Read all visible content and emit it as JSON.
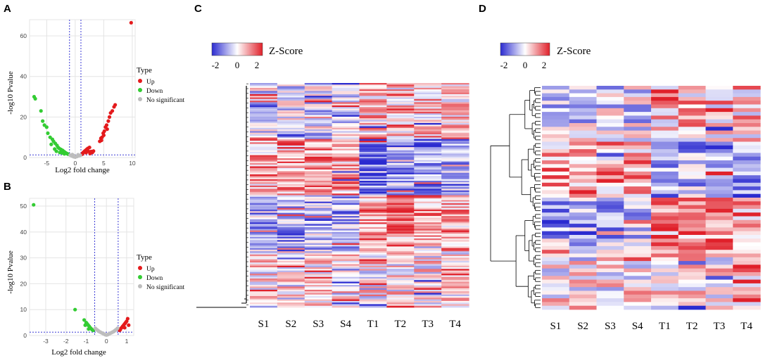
{
  "panels": {
    "A": {
      "label": "A"
    },
    "B": {
      "label": "B"
    },
    "C": {
      "label": "C"
    },
    "D": {
      "label": "D"
    }
  },
  "colors": {
    "up": "#e41a1c",
    "down": "#33cc33",
    "ns": "#bdbdbd",
    "threshold": "#3b3bd6",
    "low": "#2b2bd0",
    "mid": "#ffffff",
    "high": "#e0202a"
  },
  "chart_data": [
    {
      "id": "A",
      "type": "scatter",
      "title": "",
      "xlabel": "Log2 fold change",
      "ylabel": "-log10 Pvalue",
      "xlim": [
        -8,
        10.5
      ],
      "ylim": [
        0,
        68
      ],
      "xticks": [
        -5,
        0,
        5,
        10
      ],
      "yticks": [
        0,
        20,
        40,
        60
      ],
      "grid": true,
      "thresholds": {
        "x": [
          -1,
          1
        ],
        "y": [
          1.3
        ]
      },
      "legend": {
        "title": "Type",
        "position": "right",
        "entries": [
          "Up",
          "Down",
          "No significant"
        ]
      },
      "series": [
        {
          "name": "Up",
          "points": [
            [
              9.8,
              66.5
            ],
            [
              7,
              26
            ],
            [
              6.8,
              25
            ],
            [
              6.5,
              23
            ],
            [
              6.2,
              22
            ],
            [
              6,
              20
            ],
            [
              5.8,
              18
            ],
            [
              5.5,
              16
            ],
            [
              5.3,
              15
            ],
            [
              5.6,
              14
            ],
            [
              5.1,
              13
            ],
            [
              4.9,
              12
            ],
            [
              5,
              11
            ],
            [
              4.7,
              10
            ],
            [
              4.5,
              9.5
            ],
            [
              4.6,
              8.5
            ],
            [
              4.3,
              8
            ],
            [
              2.5,
              5
            ],
            [
              2.2,
              4.5
            ],
            [
              2,
              4
            ],
            [
              1.8,
              3.5
            ],
            [
              1.6,
              3
            ],
            [
              1.4,
              2.5
            ],
            [
              1.3,
              2
            ],
            [
              1.2,
              1.6
            ],
            [
              2.8,
              3
            ],
            [
              3,
              2.5
            ],
            [
              2.6,
              2
            ],
            [
              3.2,
              3.2
            ],
            [
              1.9,
              2.4
            ],
            [
              2.3,
              3.1
            ]
          ]
        },
        {
          "name": "Down",
          "points": [
            [
              -7.2,
              30
            ],
            [
              -7,
              29
            ],
            [
              -6,
              23
            ],
            [
              -5.7,
              18
            ],
            [
              -5.4,
              16
            ],
            [
              -5,
              15
            ],
            [
              -4.8,
              12
            ],
            [
              -4.4,
              10
            ],
            [
              -4,
              9
            ],
            [
              -3.8,
              8
            ],
            [
              -3.5,
              7
            ],
            [
              -3.2,
              6
            ],
            [
              -3,
              5
            ],
            [
              -2.8,
              4.5
            ],
            [
              -2.5,
              4
            ],
            [
              -2.2,
              3.5
            ],
            [
              -2,
              3
            ],
            [
              -1.8,
              2.6
            ],
            [
              -1.6,
              2.2
            ],
            [
              -1.4,
              1.9
            ],
            [
              -1.2,
              1.6
            ],
            [
              -2.7,
              2.5
            ],
            [
              -3.3,
              3.1
            ],
            [
              -4.2,
              6.5
            ],
            [
              -3.6,
              4.2
            ],
            [
              -2.3,
              2.3
            ],
            [
              -1.9,
              1.8
            ]
          ]
        },
        {
          "name": "No significant",
          "points": [
            [
              -0.9,
              1.2
            ],
            [
              -0.6,
              0.8
            ],
            [
              -0.3,
              0.4
            ],
            [
              0,
              0.2
            ],
            [
              0.3,
              0.5
            ],
            [
              0.6,
              0.9
            ],
            [
              0.9,
              1.1
            ],
            [
              -0.5,
              1.5
            ],
            [
              0.5,
              1.4
            ],
            [
              -0.2,
              0.9
            ]
          ]
        }
      ]
    },
    {
      "id": "B",
      "type": "scatter",
      "title": "",
      "xlabel": "Log2 fold change",
      "ylabel": "-log10 Pvalue",
      "xlim": [
        -3.8,
        1.35
      ],
      "ylim": [
        0,
        53
      ],
      "xticks": [
        -3,
        -2,
        -1,
        0,
        1
      ],
      "yticks": [
        0,
        10,
        20,
        30,
        40,
        50
      ],
      "grid": true,
      "thresholds": {
        "x": [
          -0.58,
          0.58
        ],
        "y": [
          1.3
        ]
      },
      "legend": {
        "title": "Type",
        "position": "right",
        "entries": [
          "Up",
          "Down",
          "No significant"
        ]
      },
      "series": [
        {
          "name": "Up",
          "points": [
            [
              1.05,
              6.5
            ],
            [
              1,
              5.5
            ],
            [
              0.95,
              5
            ],
            [
              0.9,
              4.5
            ],
            [
              0.85,
              4
            ],
            [
              0.8,
              3.5
            ],
            [
              0.75,
              3
            ],
            [
              0.7,
              2.6
            ],
            [
              0.68,
              2.2
            ],
            [
              0.65,
              2
            ],
            [
              1.1,
              4
            ],
            [
              0.9,
              3
            ]
          ]
        },
        {
          "name": "Down",
          "points": [
            [
              -3.6,
              50.5
            ],
            [
              -1.55,
              10
            ],
            [
              -1.1,
              6
            ],
            [
              -1,
              5
            ],
            [
              -0.95,
              4.5
            ],
            [
              -0.9,
              4
            ],
            [
              -0.85,
              3.5
            ],
            [
              -0.8,
              3
            ],
            [
              -0.75,
              2.6
            ],
            [
              -0.7,
              2.2
            ],
            [
              -0.65,
              2
            ],
            [
              -1.05,
              4
            ],
            [
              -0.88,
              2.5
            ]
          ]
        },
        {
          "name": "No significant",
          "points": [
            [
              -0.55,
              2.8
            ],
            [
              -0.5,
              2.4
            ],
            [
              -0.45,
              2.1
            ],
            [
              -0.4,
              1.8
            ],
            [
              -0.35,
              1.5
            ],
            [
              -0.3,
              1.3
            ],
            [
              -0.25,
              1.1
            ],
            [
              -0.2,
              0.9
            ],
            [
              -0.15,
              0.7
            ],
            [
              -0.1,
              0.5
            ],
            [
              -0.05,
              0.3
            ],
            [
              0,
              0.2
            ],
            [
              0.05,
              0.3
            ],
            [
              0.1,
              0.5
            ],
            [
              0.15,
              0.7
            ],
            [
              0.2,
              0.9
            ],
            [
              0.25,
              1.1
            ],
            [
              0.3,
              1.3
            ],
            [
              0.35,
              1.5
            ],
            [
              0.4,
              1.8
            ],
            [
              0.45,
              2.1
            ],
            [
              0.5,
              2.4
            ],
            [
              0.55,
              2.8
            ]
          ]
        }
      ]
    },
    {
      "id": "C",
      "type": "heatmap",
      "columns": [
        "S1",
        "S2",
        "S3",
        "S4",
        "T1",
        "T2",
        "T3",
        "T4"
      ],
      "rows": 140,
      "seed": 7,
      "legend": {
        "title": "Z-Score",
        "ticks": [
          "-2",
          "0",
          "2"
        ],
        "range": [
          -2,
          2
        ]
      },
      "dendrogram": "flat"
    },
    {
      "id": "D",
      "type": "heatmap",
      "columns": [
        "S1",
        "S2",
        "S3",
        "S4",
        "T1",
        "T2",
        "T3",
        "T4"
      ],
      "rows": 60,
      "seed": 13,
      "legend": {
        "title": "Z-Score",
        "ticks": [
          "-2",
          "0",
          "2"
        ],
        "range": [
          -2,
          2
        ]
      },
      "dendrogram": "hierarchical"
    }
  ]
}
